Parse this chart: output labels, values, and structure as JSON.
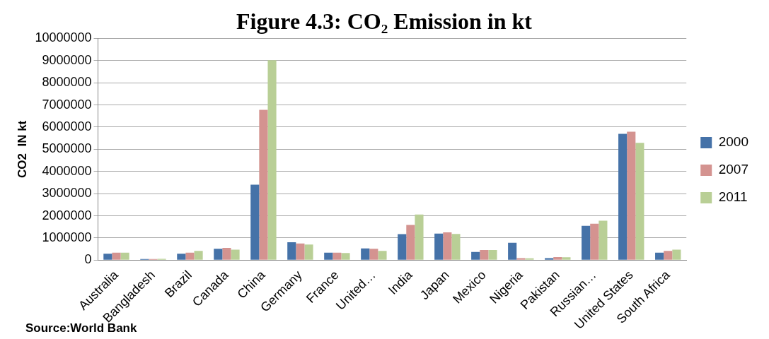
{
  "chart_data": {
    "type": "bar",
    "title": "Figure 4.3: CO₂ Emission in kt",
    "ylabel": "CO2  IN kt",
    "categories": [
      "Australia",
      "Bangladesh",
      "Brazil",
      "Canada",
      "China",
      "Germany",
      "France",
      "United…",
      "India",
      "Japan",
      "Mexico",
      "Nigeria",
      "Pakistan",
      "Russian…",
      "United States",
      "South Africa"
    ],
    "series": [
      {
        "name": "2000",
        "color": "#4572a8",
        "values": [
          290000,
          50000,
          290000,
          510000,
          3400000,
          810000,
          340000,
          530000,
          1170000,
          1200000,
          370000,
          780000,
          90000,
          1550000,
          5700000,
          340000
        ]
      },
      {
        "name": "2007",
        "color": "#d49390",
        "values": [
          340000,
          50000,
          340000,
          550000,
          6780000,
          750000,
          340000,
          510000,
          1590000,
          1250000,
          460000,
          90000,
          140000,
          1640000,
          5790000,
          420000
        ]
      },
      {
        "name": "2011",
        "color": "#b9cf96",
        "values": [
          340000,
          60000,
          420000,
          470000,
          9020000,
          700000,
          320000,
          420000,
          2060000,
          1180000,
          460000,
          80000,
          130000,
          1780000,
          5290000,
          470000
        ]
      }
    ],
    "ylim": [
      0,
      10000000
    ],
    "yticks": [
      0,
      1000000,
      2000000,
      3000000,
      4000000,
      5000000,
      6000000,
      7000000,
      8000000,
      9000000,
      10000000
    ],
    "grid": "y",
    "legend": "right",
    "annotations": [
      "Source:World Bank"
    ]
  }
}
